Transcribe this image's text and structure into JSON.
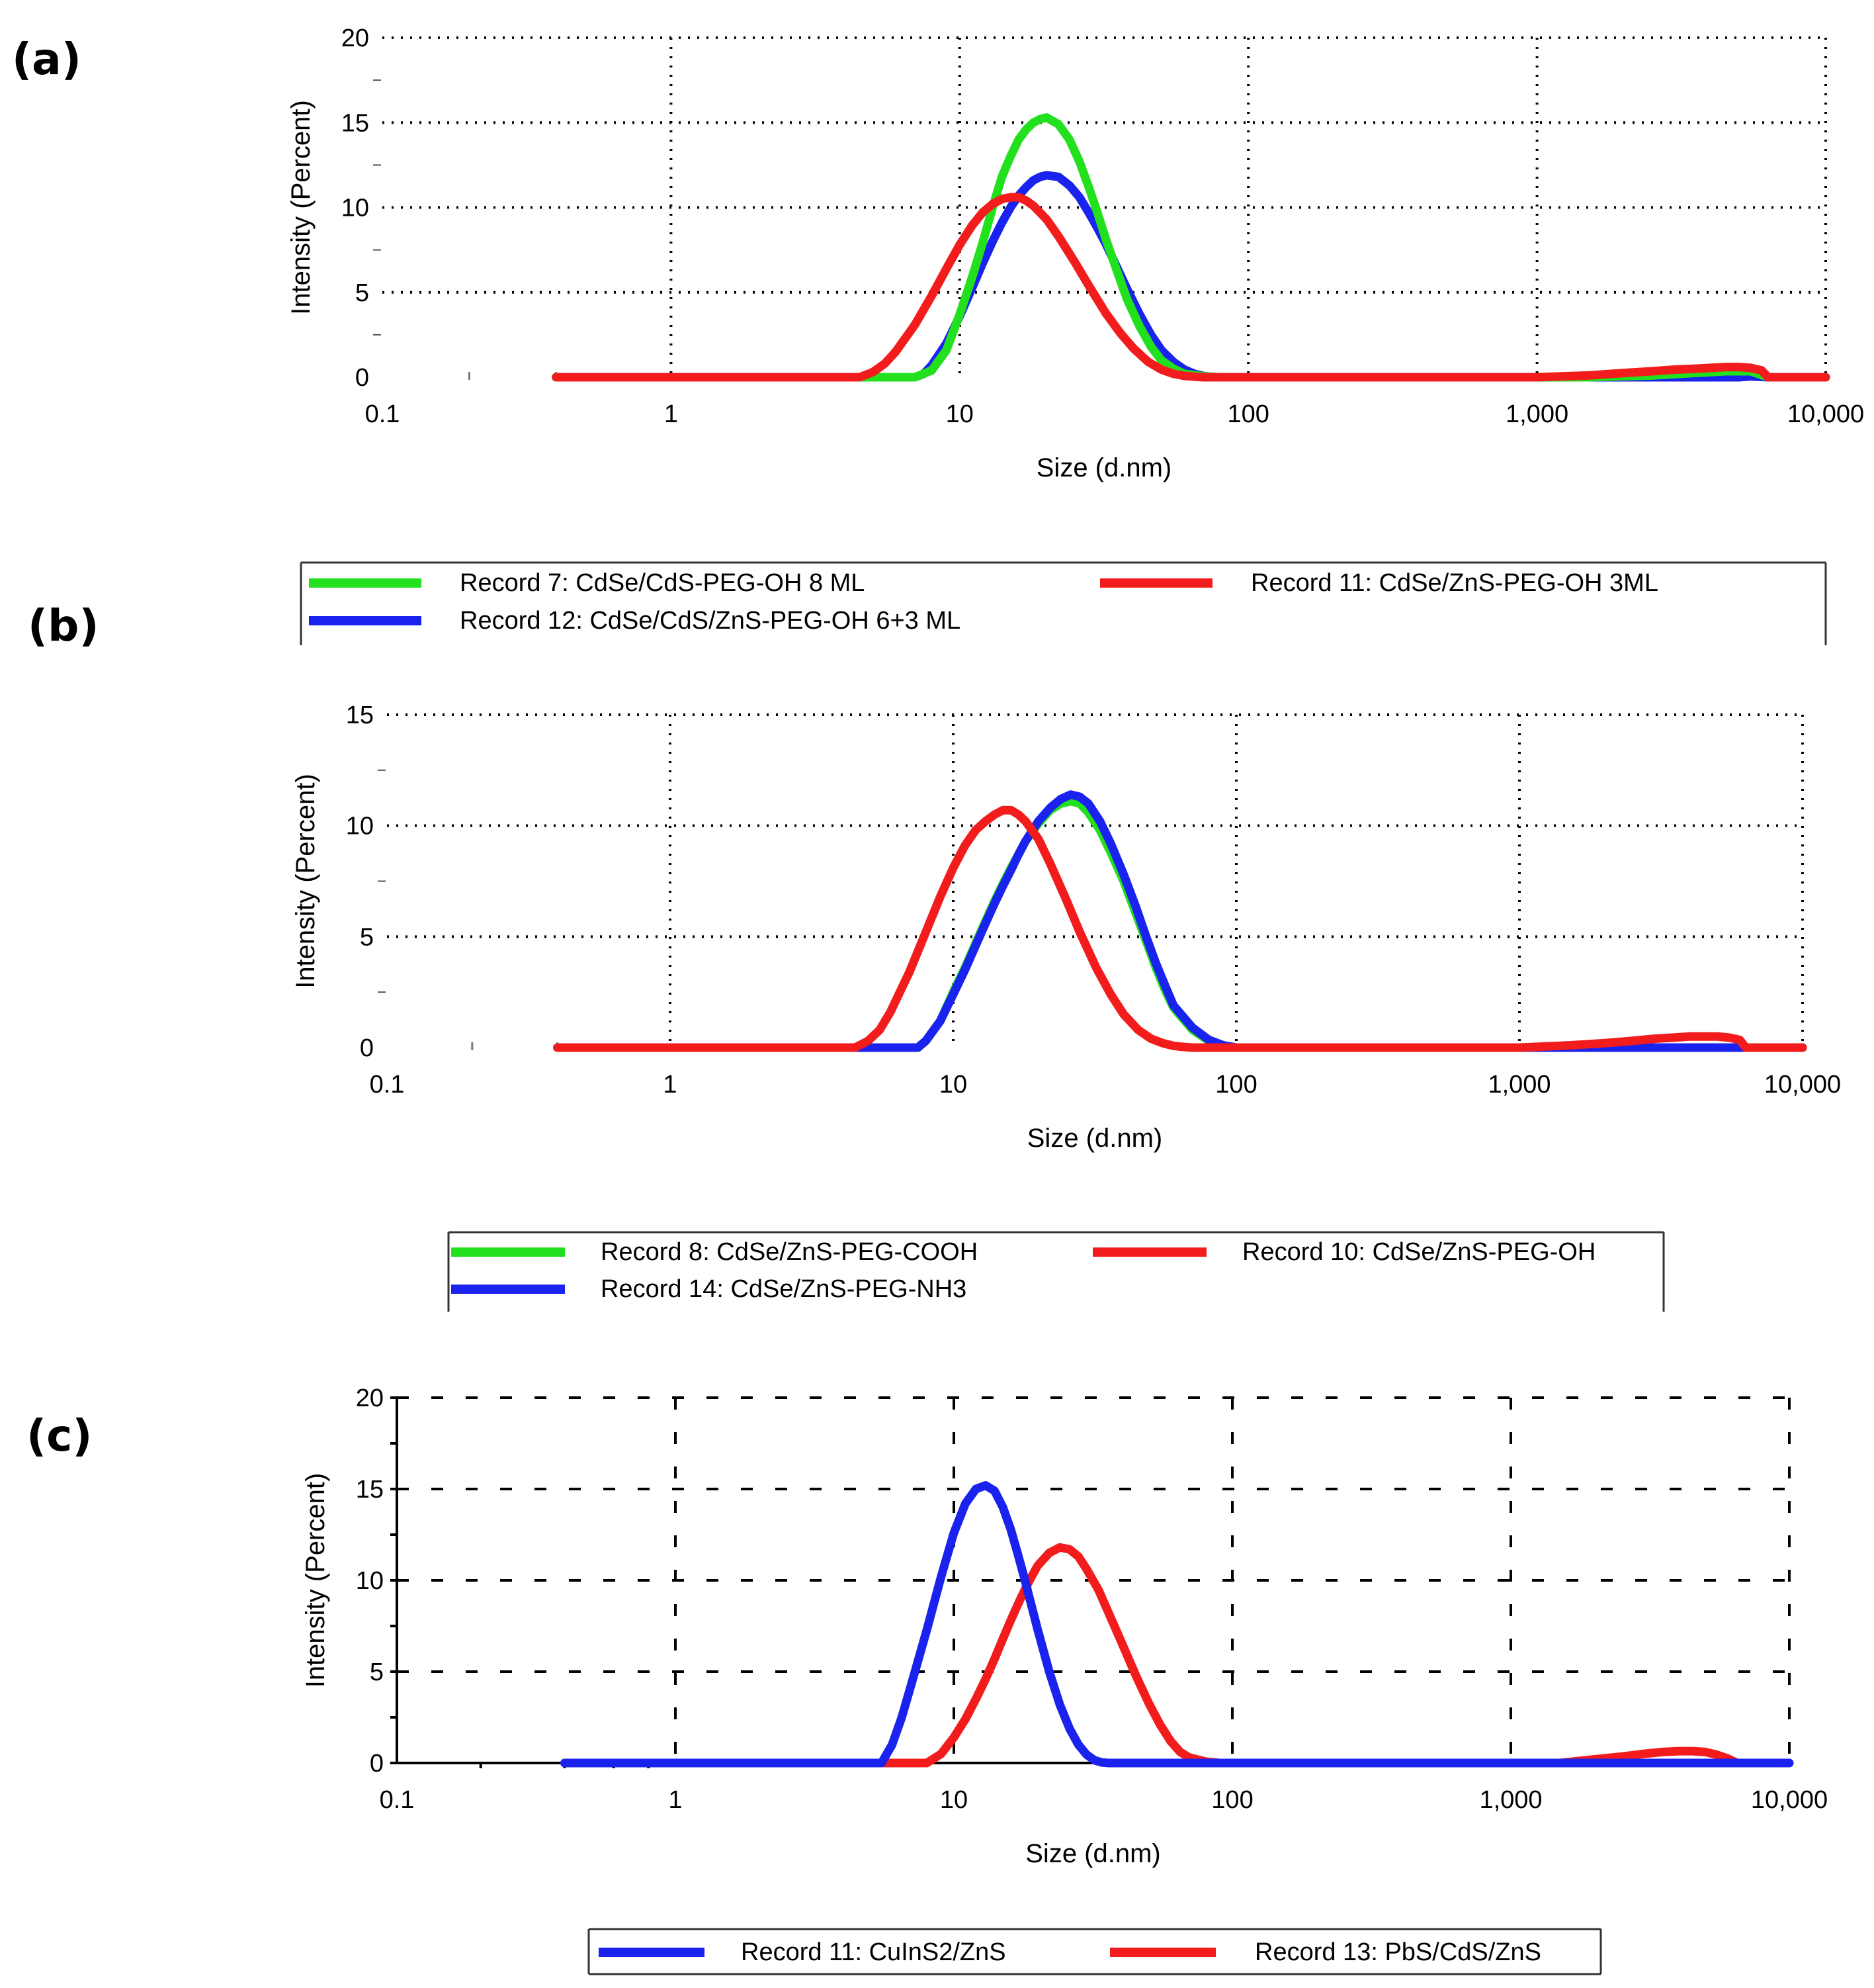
{
  "chart_data": [
    {
      "panel": "(a)",
      "type": "line",
      "x_scale": "log",
      "xlabel": "Size (d.nm)",
      "ylabel": "Intensity (Percent)",
      "xlim": [
        0.1,
        10000
      ],
      "ylim": [
        0,
        20
      ],
      "x_ticks": [
        0.1,
        1,
        10,
        100,
        1000,
        10000
      ],
      "x_tick_labels": [
        "0.1",
        "1",
        "10",
        "100",
        "1,000",
        "10,000"
      ],
      "y_ticks": [
        0,
        5,
        10,
        15,
        20
      ],
      "y_tick_labels": [
        "0",
        "5",
        "10",
        "15",
        "20"
      ],
      "grid": "dotted",
      "series": [
        {
          "name": "Record 7: CdSe/CdS-PEG-OH 8 ML",
          "color": "#22e01e",
          "x": [
            0.4,
            7,
            8,
            9,
            10,
            11,
            12,
            13,
            14,
            15,
            16,
            17,
            18,
            19,
            20,
            22,
            24,
            26,
            28,
            30,
            32,
            35,
            38,
            42,
            46,
            50,
            55,
            60,
            70,
            80,
            1500,
            2500,
            3500,
            4500,
            5500,
            6300,
            10000
          ],
          "y": [
            0,
            0,
            0.4,
            1.6,
            3.7,
            5.8,
            7.9,
            10.0,
            11.8,
            13.0,
            14.0,
            14.6,
            15.0,
            15.2,
            15.3,
            14.9,
            14.0,
            12.7,
            11.2,
            9.7,
            8.2,
            6.3,
            4.6,
            3.0,
            1.8,
            1.0,
            0.5,
            0.2,
            0.05,
            0,
            0,
            0.1,
            0.25,
            0.35,
            0.35,
            0,
            0
          ]
        },
        {
          "name": "Record 11: CdSe/ZnS-PEG-OH 3ML",
          "color": "#f21c1c",
          "x": [
            0.4,
            4.5,
            5,
            5.5,
            6,
            7,
            8,
            9,
            10,
            11,
            12,
            13,
            14,
            15,
            16,
            17,
            18,
            20,
            22,
            25,
            28,
            32,
            36,
            40,
            45,
            50,
            55,
            60,
            65,
            70,
            1000,
            1500,
            2000,
            2500,
            3000,
            3500,
            4000,
            4500,
            5000,
            5500,
            6000,
            6300,
            10000
          ],
          "y": [
            0,
            0,
            0.3,
            0.8,
            1.5,
            3.1,
            4.8,
            6.4,
            7.8,
            8.9,
            9.7,
            10.2,
            10.5,
            10.6,
            10.6,
            10.4,
            10.1,
            9.3,
            8.3,
            6.8,
            5.4,
            3.8,
            2.6,
            1.7,
            0.9,
            0.45,
            0.2,
            0.08,
            0.03,
            0,
            0,
            0.1,
            0.25,
            0.35,
            0.45,
            0.5,
            0.55,
            0.6,
            0.6,
            0.55,
            0.4,
            0,
            0
          ]
        },
        {
          "name": "Record 12: CdSe/CdS/ZnS-PEG-OH 6+3 ML",
          "color": "#1a22ee",
          "x": [
            0.4,
            7,
            7.5,
            8,
            9,
            10,
            11,
            12,
            13,
            14,
            15,
            16,
            17,
            18,
            19,
            20,
            22,
            24,
            26,
            28,
            30,
            32,
            35,
            38,
            42,
            46,
            50,
            55,
            60,
            65,
            70,
            75,
            5000,
            5500,
            6300,
            10000
          ],
          "y": [
            0,
            0,
            0.2,
            0.7,
            2.0,
            3.6,
            5.2,
            6.7,
            8.0,
            9.1,
            10.0,
            10.7,
            11.2,
            11.6,
            11.8,
            11.9,
            11.8,
            11.3,
            10.6,
            9.7,
            8.8,
            7.9,
            6.5,
            5.2,
            3.7,
            2.5,
            1.6,
            0.9,
            0.45,
            0.2,
            0.07,
            0,
            0,
            0.05,
            0,
            0
          ]
        }
      ],
      "legend": [
        "Record 7: CdSe/CdS-PEG-OH 8 ML",
        "Record 11: CdSe/ZnS-PEG-OH 3ML",
        "Record 12: CdSe/CdS/ZnS-PEG-OH 6+3 ML"
      ]
    },
    {
      "panel": "(b)",
      "type": "line",
      "x_scale": "log",
      "xlabel": "Size (d.nm)",
      "ylabel": "Intensity (Percent)",
      "xlim": [
        0.1,
        10000
      ],
      "ylim": [
        0,
        15
      ],
      "x_ticks": [
        0.1,
        1,
        10,
        100,
        1000,
        10000
      ],
      "x_tick_labels": [
        "0.1",
        "1",
        "10",
        "100",
        "1,000",
        "10,000"
      ],
      "y_ticks": [
        0,
        5,
        10,
        15
      ],
      "y_tick_labels": [
        "0",
        "5",
        "10",
        "15"
      ],
      "grid": "dotted",
      "series": [
        {
          "name": "Record 8: CdSe/ZnS-PEG-COOH",
          "color": "#22e01e",
          "x": [
            0.4,
            7.5,
            8,
            9,
            10,
            11,
            12,
            13,
            14,
            15,
            16,
            17,
            18,
            20,
            22,
            24,
            26,
            28,
            30,
            33,
            36,
            40,
            44,
            48,
            52,
            56,
            60,
            70,
            80,
            90,
            100,
            10000
          ],
          "y": [
            0,
            0,
            0.3,
            1.2,
            2.5,
            3.6,
            4.7,
            5.7,
            6.6,
            7.4,
            8.1,
            8.7,
            9.3,
            10.1,
            10.7,
            11.0,
            11.1,
            11.0,
            10.6,
            9.8,
            8.8,
            7.5,
            6.1,
            4.8,
            3.6,
            2.6,
            1.8,
            0.8,
            0.3,
            0.1,
            0,
            0
          ]
        },
        {
          "name": "Record 10: CdSe/ZnS-PEG-OH",
          "color": "#f21c1c",
          "x": [
            0.4,
            4.5,
            5,
            5.5,
            6,
            7,
            8,
            9,
            10,
            11,
            12,
            13,
            14,
            15,
            16,
            17,
            18,
            20,
            22,
            25,
            28,
            32,
            36,
            40,
            45,
            50,
            55,
            60,
            65,
            70,
            1000,
            1500,
            2000,
            2500,
            3000,
            3500,
            4000,
            4500,
            5000,
            5500,
            6000,
            6300,
            10000
          ],
          "y": [
            0,
            0,
            0.3,
            0.8,
            1.6,
            3.4,
            5.2,
            6.8,
            8.1,
            9.1,
            9.8,
            10.2,
            10.5,
            10.7,
            10.7,
            10.5,
            10.2,
            9.4,
            8.3,
            6.7,
            5.2,
            3.6,
            2.4,
            1.5,
            0.8,
            0.4,
            0.2,
            0.08,
            0.03,
            0,
            0,
            0.1,
            0.2,
            0.3,
            0.4,
            0.45,
            0.5,
            0.5,
            0.5,
            0.45,
            0.35,
            0,
            0
          ]
        },
        {
          "name": "Record 14: CdSe/ZnS-PEG-NH3",
          "color": "#1a22ee",
          "x": [
            0.4,
            7.5,
            8,
            9,
            10,
            11,
            12,
            13,
            14,
            15,
            16,
            17,
            18,
            20,
            22,
            24,
            26,
            28,
            30,
            33,
            36,
            40,
            44,
            48,
            52,
            56,
            60,
            70,
            80,
            90,
            100,
            10000
          ],
          "y": [
            0,
            0,
            0.3,
            1.2,
            2.4,
            3.5,
            4.6,
            5.6,
            6.5,
            7.3,
            8.0,
            8.7,
            9.3,
            10.2,
            10.8,
            11.2,
            11.4,
            11.3,
            11.0,
            10.2,
            9.2,
            7.8,
            6.4,
            5.0,
            3.8,
            2.8,
            1.9,
            0.9,
            0.35,
            0.1,
            0,
            0
          ]
        }
      ],
      "legend": [
        "Record 8: CdSe/ZnS-PEG-COOH",
        "Record 10: CdSe/ZnS-PEG-OH",
        "Record 14: CdSe/ZnS-PEG-NH3"
      ]
    },
    {
      "panel": "(c)",
      "type": "line",
      "x_scale": "log",
      "xlabel": "Size (d.nm)",
      "ylabel": "Intensity (Percent)",
      "xlim": [
        0.1,
        10000
      ],
      "ylim": [
        0,
        20
      ],
      "x_ticks": [
        0.1,
        1,
        10,
        100,
        1000,
        10000
      ],
      "x_tick_labels": [
        "0.1",
        "1",
        "10",
        "100",
        "1,000",
        "10,000"
      ],
      "y_ticks": [
        0,
        5,
        10,
        15,
        20
      ],
      "y_tick_labels": [
        "0",
        "5",
        "10",
        "15",
        "20"
      ],
      "grid": "dashed",
      "series": [
        {
          "name": "Record 11: CuInS2/ZnS",
          "color": "#1a22ee",
          "x": [
            0.4,
            5.5,
            6,
            6.5,
            7,
            8,
            9,
            10,
            11,
            12,
            13,
            14,
            15,
            16,
            17,
            18,
            20,
            22,
            24,
            26,
            28,
            30,
            32,
            34,
            36,
            10000
          ],
          "y": [
            0,
            0,
            1.0,
            2.5,
            4.2,
            7.3,
            10.2,
            12.6,
            14.2,
            15.0,
            15.2,
            14.9,
            14.0,
            12.8,
            11.4,
            10.0,
            7.3,
            5.0,
            3.2,
            1.9,
            1.0,
            0.45,
            0.15,
            0.03,
            0,
            0
          ]
        },
        {
          "name": "Record 13: PbS/CdS/ZnS",
          "color": "#f21c1c",
          "x": [
            0.4,
            8,
            9,
            10,
            11,
            12,
            13,
            14,
            15,
            16,
            17,
            18,
            19,
            20,
            22,
            24,
            26,
            28,
            30,
            33,
            36,
            40,
            45,
            50,
            55,
            60,
            65,
            70,
            80,
            90,
            1500,
            2000,
            2500,
            3000,
            3500,
            4000,
            4500,
            5000,
            5500,
            6000,
            6500,
            10000
          ],
          "y": [
            0,
            0,
            0.5,
            1.4,
            2.4,
            3.5,
            4.6,
            5.7,
            6.8,
            7.8,
            8.7,
            9.5,
            10.2,
            10.8,
            11.5,
            11.8,
            11.7,
            11.3,
            10.6,
            9.5,
            8.2,
            6.6,
            4.8,
            3.3,
            2.1,
            1.2,
            0.6,
            0.3,
            0.08,
            0,
            0,
            0.2,
            0.35,
            0.5,
            0.6,
            0.65,
            0.65,
            0.6,
            0.45,
            0.25,
            0,
            0
          ]
        }
      ],
      "legend": [
        "Record 11: CuInS2/ZnS",
        "Record 13: PbS/CdS/ZnS"
      ]
    }
  ]
}
